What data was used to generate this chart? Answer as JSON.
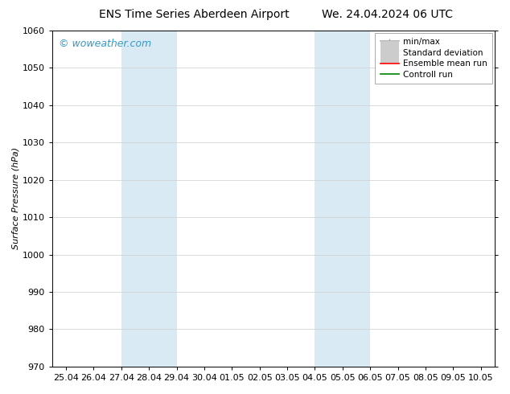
{
  "title_left": "ENS Time Series Aberdeen Airport",
  "title_right": "We. 24.04.2024 06 UTC",
  "ylabel": "Surface Pressure (hPa)",
  "ylim": [
    970,
    1060
  ],
  "yticks": [
    970,
    980,
    990,
    1000,
    1010,
    1020,
    1030,
    1040,
    1050,
    1060
  ],
  "xtick_labels": [
    "25.04",
    "26.04",
    "27.04",
    "28.04",
    "29.04",
    "30.04",
    "01.05",
    "02.05",
    "03.05",
    "04.05",
    "05.05",
    "06.05",
    "07.05",
    "08.05",
    "09.05",
    "10.05"
  ],
  "xtick_positions": [
    0,
    1,
    2,
    3,
    4,
    5,
    6,
    7,
    8,
    9,
    10,
    11,
    12,
    13,
    14,
    15
  ],
  "shade_bands": [
    {
      "xmin": 2,
      "xmax": 4,
      "color": "#daeaf5"
    },
    {
      "xmin": 9,
      "xmax": 11,
      "color": "#daeaf5"
    }
  ],
  "watermark": "© woweather.com",
  "watermark_color": "#3399cc",
  "bg_color": "#ffffff",
  "grid_color": "#cccccc",
  "legend_items": [
    {
      "label": "min/max",
      "color": "#aaaaaa",
      "lw": 1.2,
      "ls": "-"
    },
    {
      "label": "Standard deviation",
      "color": "#cccccc",
      "lw": 5,
      "ls": "-"
    },
    {
      "label": "Ensemble mean run",
      "color": "red",
      "lw": 1.2,
      "ls": "-"
    },
    {
      "label": "Controll run",
      "color": "green",
      "lw": 1.2,
      "ls": "-"
    }
  ],
  "title_fontsize": 10,
  "axis_label_fontsize": 8,
  "tick_fontsize": 8,
  "watermark_fontsize": 9,
  "legend_fontsize": 7.5
}
